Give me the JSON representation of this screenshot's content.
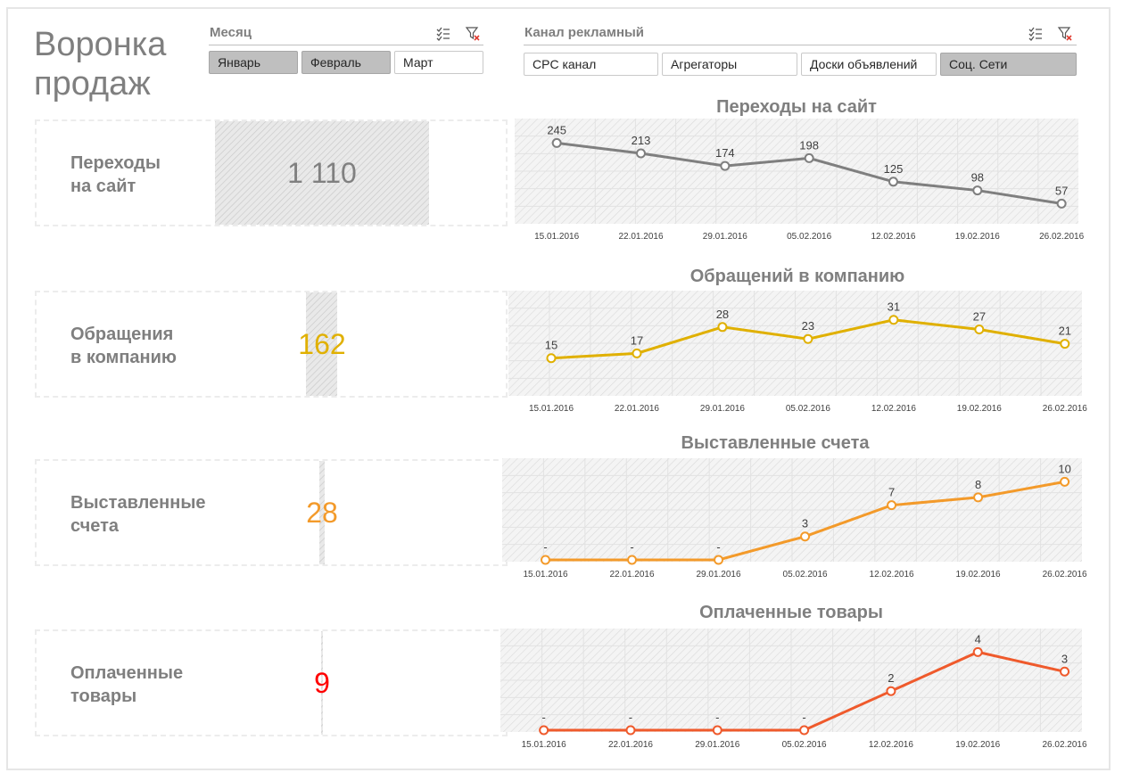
{
  "title": {
    "line1": "Воронка",
    "line2": "продаж"
  },
  "slicers": {
    "month": {
      "label": "Месяц",
      "items": [
        {
          "label": "Январь",
          "selected": true
        },
        {
          "label": "Февраль",
          "selected": true
        },
        {
          "label": "Март",
          "selected": false
        }
      ]
    },
    "channel": {
      "label": "Канал рекламный",
      "items": [
        {
          "label": "CPC канал",
          "selected": false
        },
        {
          "label": "Агрегаторы",
          "selected": false
        },
        {
          "label": "Доски объявлений",
          "selected": false
        },
        {
          "label": "Соц. Сети",
          "selected": true
        }
      ]
    },
    "icons": {
      "multiselect": "multiselect-icon",
      "clear_filter": "clear-filter-icon"
    }
  },
  "kpis": [
    {
      "label_line1": "Переходы",
      "label_line2": "на сайт",
      "value": "1 110",
      "color": "#808080",
      "fraction": 1.0
    },
    {
      "label_line1": "Обращения",
      "label_line2": "в компанию",
      "value": "162",
      "color": "#e0b000",
      "fraction": 0.146
    },
    {
      "label_line1": "Выставленные",
      "label_line2": "счета",
      "value": "28",
      "color": "#f39a2a",
      "fraction": 0.025
    },
    {
      "label_line1": "Оплаченные",
      "label_line2": "товары",
      "value": "9",
      "color": "#ff0000",
      "fraction": 0.008
    }
  ],
  "chart_data": [
    {
      "type": "line",
      "title": "Переходы на сайт",
      "x": [
        "15.01.2016",
        "22.01.2016",
        "29.01.2016",
        "05.02.2016",
        "12.02.2016",
        "19.02.2016",
        "26.02.2016"
      ],
      "values": [
        245,
        213,
        174,
        198,
        125,
        98,
        57
      ],
      "labels": [
        "245",
        "213",
        "174",
        "198",
        "125",
        "98",
        "57"
      ],
      "ylim": [
        0,
        260
      ],
      "color": "#7f7f7f"
    },
    {
      "type": "line",
      "title": "Обращений в компанию",
      "x": [
        "15.01.2016",
        "22.01.2016",
        "29.01.2016",
        "05.02.2016",
        "12.02.2016",
        "19.02.2016",
        "26.02.2016"
      ],
      "values": [
        15,
        17,
        28,
        23,
        31,
        27,
        21
      ],
      "labels": [
        "15",
        "17",
        "28",
        "23",
        "31",
        "27",
        "21"
      ],
      "ylim": [
        0,
        35
      ],
      "color": "#e0b000"
    },
    {
      "type": "line",
      "title": "Выставленные счета",
      "x": [
        "15.01.2016",
        "22.01.2016",
        "29.01.2016",
        "05.02.2016",
        "12.02.2016",
        "19.02.2016",
        "26.02.2016"
      ],
      "values": [
        0,
        0,
        0,
        3,
        7,
        8,
        10
      ],
      "labels": [
        "-",
        "-",
        "-",
        "3",
        "7",
        "8",
        "10"
      ],
      "ylim": [
        0,
        10.5
      ],
      "color": "#f39a2a"
    },
    {
      "type": "line",
      "title": "Оплаченные товары",
      "x": [
        "15.01.2016",
        "22.01.2016",
        "29.01.2016",
        "05.02.2016",
        "12.02.2016",
        "19.02.2016",
        "26.02.2016"
      ],
      "values": [
        0,
        0,
        0,
        0,
        2,
        4,
        3
      ],
      "labels": [
        "-",
        "-",
        "-",
        "-",
        "2",
        "4",
        "3"
      ],
      "ylim": [
        0,
        4.2
      ],
      "color": "#ef5a2c"
    }
  ]
}
